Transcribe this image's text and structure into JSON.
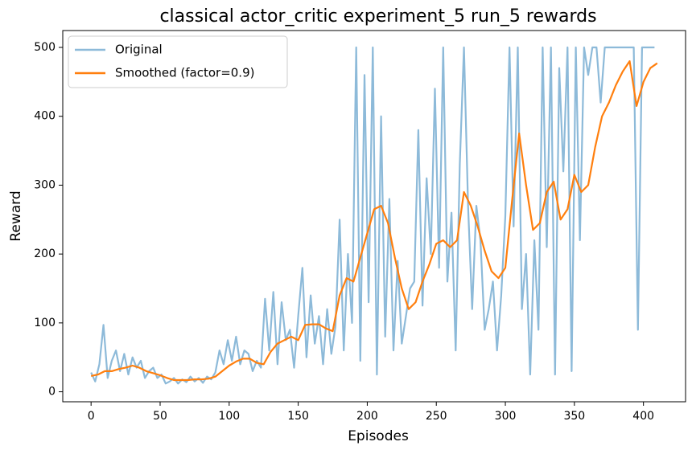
{
  "chart_data": {
    "type": "line",
    "title": "classical actor_critic experiment_5 run_5 rewards",
    "x_label": "Episodes",
    "y_label": "Reward",
    "xlim": [
      -20.5,
      430.5
    ],
    "xticks": [
      0,
      50,
      100,
      150,
      200,
      250,
      300,
      350,
      400
    ],
    "ylim": [
      -14.5,
      524.5
    ],
    "yticks": [
      0,
      100,
      200,
      300,
      400,
      500
    ],
    "legend": "upper left",
    "series": [
      {
        "name": "Original",
        "color": "#8dbad9",
        "x": [
          0,
          3,
          6,
          9,
          12,
          15,
          18,
          21,
          24,
          27,
          30,
          33,
          36,
          39,
          42,
          45,
          48,
          51,
          54,
          57,
          60,
          63,
          66,
          69,
          72,
          75,
          78,
          81,
          84,
          87,
          90,
          93,
          96,
          99,
          102,
          105,
          108,
          111,
          114,
          117,
          120,
          123,
          126,
          129,
          132,
          135,
          138,
          141,
          144,
          147,
          150,
          153,
          156,
          159,
          162,
          165,
          168,
          171,
          174,
          177,
          180,
          183,
          186,
          189,
          192,
          195,
          198,
          201,
          204,
          207,
          210,
          213,
          216,
          219,
          222,
          225,
          228,
          231,
          234,
          237,
          240,
          243,
          246,
          249,
          252,
          255,
          258,
          261,
          264,
          267,
          270,
          273,
          276,
          279,
          282,
          285,
          288,
          291,
          294,
          297,
          300,
          303,
          306,
          309,
          312,
          315,
          318,
          321,
          324,
          327,
          330,
          333,
          336,
          339,
          342,
          345,
          348,
          351,
          354,
          357,
          360,
          363,
          366,
          369,
          372,
          375,
          378,
          381,
          384,
          387,
          390,
          393,
          396,
          399,
          402,
          405,
          408
        ],
        "values": [
          28,
          15,
          40,
          97,
          20,
          45,
          60,
          30,
          55,
          25,
          50,
          35,
          45,
          20,
          30,
          35,
          20,
          25,
          12,
          15,
          20,
          12,
          18,
          14,
          22,
          15,
          20,
          13,
          22,
          18,
          28,
          60,
          40,
          75,
          45,
          80,
          40,
          60,
          55,
          30,
          45,
          35,
          135,
          60,
          145,
          40,
          130,
          75,
          90,
          35,
          110,
          180,
          50,
          140,
          70,
          110,
          40,
          120,
          55,
          95,
          250,
          60,
          200,
          100,
          500,
          45,
          460,
          130,
          500,
          25,
          400,
          80,
          280,
          60,
          190,
          70,
          110,
          150,
          160,
          380,
          125,
          310,
          200,
          440,
          180,
          500,
          160,
          260,
          60,
          330,
          500,
          270,
          120,
          270,
          220,
          90,
          120,
          160,
          60,
          140,
          255,
          500,
          240,
          500,
          120,
          200,
          25,
          220,
          90,
          500,
          210,
          500,
          25,
          470,
          320,
          500,
          30,
          500,
          220,
          500,
          460,
          500,
          500,
          420,
          500,
          500,
          500,
          500,
          500,
          500,
          500,
          500,
          90,
          500,
          500,
          500,
          500
        ]
      },
      {
        "name": "Smoothed (factor=0.9)",
        "color": "#ff7f0e",
        "x": [
          0,
          5,
          10,
          15,
          20,
          25,
          30,
          35,
          40,
          45,
          50,
          55,
          60,
          65,
          70,
          75,
          80,
          85,
          90,
          95,
          100,
          105,
          110,
          115,
          120,
          125,
          130,
          135,
          140,
          145,
          150,
          155,
          160,
          165,
          170,
          175,
          180,
          185,
          190,
          195,
          200,
          205,
          210,
          215,
          220,
          225,
          230,
          235,
          240,
          245,
          250,
          255,
          260,
          265,
          270,
          275,
          280,
          285,
          290,
          295,
          300,
          305,
          310,
          315,
          320,
          325,
          330,
          335,
          340,
          345,
          350,
          355,
          360,
          365,
          370,
          375,
          380,
          385,
          390,
          395,
          400,
          405,
          410
        ],
        "values": [
          23,
          25,
          30,
          30,
          33,
          35,
          38,
          35,
          30,
          27,
          24,
          20,
          17,
          17,
          17,
          18,
          18,
          19,
          22,
          30,
          38,
          44,
          48,
          48,
          42,
          40,
          58,
          70,
          75,
          80,
          75,
          97,
          98,
          98,
          92,
          88,
          140,
          165,
          160,
          195,
          230,
          265,
          270,
          245,
          195,
          150,
          120,
          130,
          160,
          185,
          215,
          220,
          210,
          220,
          290,
          270,
          240,
          205,
          175,
          165,
          180,
          280,
          375,
          300,
          235,
          245,
          290,
          305,
          250,
          265,
          315,
          290,
          300,
          355,
          400,
          420,
          445,
          465,
          480,
          415,
          450,
          470,
          477
        ]
      }
    ]
  }
}
